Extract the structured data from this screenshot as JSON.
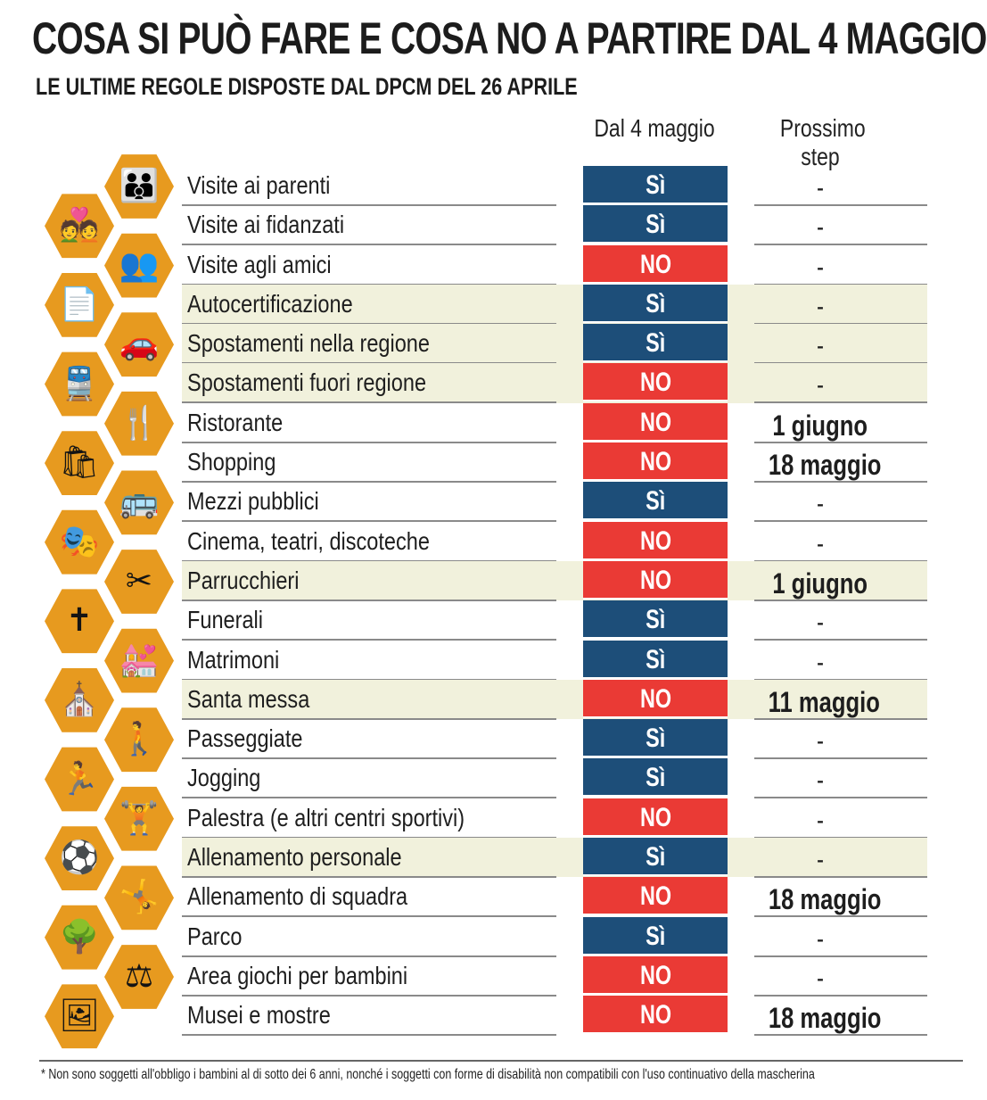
{
  "header": {
    "title": "COSA SI PUÒ FARE E COSA NO A PARTIRE DAL 4 MAGGIO",
    "subtitle": "LE ULTIME REGOLE DISPOSTE DAL DPCM DEL 26 APRILE"
  },
  "columns": {
    "now": "Dal 4 maggio",
    "next": "Prossimo step"
  },
  "colors": {
    "yes": "#1d4e79",
    "no": "#ea3a35",
    "hex": "#e79a1f",
    "highlight_row": "#f1f1dc"
  },
  "rows": [
    {
      "label": "Visite ai parenti",
      "status": "Sì",
      "next": "-",
      "highlight": false
    },
    {
      "label": "Visite ai fidanzati",
      "status": "Sì",
      "next": "-",
      "highlight": false
    },
    {
      "label": "Visite agli amici",
      "status": "NO",
      "next": "-",
      "highlight": false
    },
    {
      "label": "Autocertificazione",
      "status": "Sì",
      "next": "-",
      "highlight": true
    },
    {
      "label": "Spostamenti nella regione",
      "status": "Sì",
      "next": "-",
      "highlight": true
    },
    {
      "label": "Spostamenti fuori regione",
      "status": "NO",
      "next": "-",
      "highlight": true
    },
    {
      "label": "Ristorante",
      "status": "NO",
      "next": "1 giugno",
      "highlight": false
    },
    {
      "label": "Shopping",
      "status": "NO",
      "next": "18 maggio",
      "highlight": false
    },
    {
      "label": "Mezzi pubblici",
      "status": "Sì",
      "next": "-",
      "highlight": false
    },
    {
      "label": "Cinema, teatri, discoteche",
      "status": "NO",
      "next": "-",
      "highlight": false
    },
    {
      "label": "Parrucchieri",
      "status": "NO",
      "next": "1 giugno",
      "highlight": true
    },
    {
      "label": "Funerali",
      "status": "Sì",
      "next": "-",
      "highlight": false
    },
    {
      "label": "Matrimoni",
      "status": "Sì",
      "next": "-",
      "highlight": false
    },
    {
      "label": "Santa messa",
      "status": "NO",
      "next": "11 maggio",
      "highlight": true
    },
    {
      "label": "Passeggiate",
      "status": "Sì",
      "next": "-",
      "highlight": false
    },
    {
      "label": "Jogging",
      "status": "Sì",
      "next": "-",
      "highlight": false
    },
    {
      "label": "Palestra (e altri centri sportivi)",
      "status": "NO",
      "next": "-",
      "highlight": false
    },
    {
      "label": "Allenamento personale",
      "status": "Sì",
      "next": "-",
      "highlight": true
    },
    {
      "label": "Allenamento di squadra",
      "status": "NO",
      "next": "18 maggio",
      "highlight": false
    },
    {
      "label": "Parco",
      "status": "Sì",
      "next": "-",
      "highlight": false
    },
    {
      "label": "Area giochi per bambini",
      "status": "NO",
      "next": "-",
      "highlight": false
    },
    {
      "label": "Musei e mostre",
      "status": "NO",
      "next": "18 maggio",
      "highlight": false
    }
  ],
  "icons": [
    {
      "name": "family-icon",
      "glyph": "👪"
    },
    {
      "name": "couple-icon",
      "glyph": "💑"
    },
    {
      "name": "friends-icon",
      "glyph": "👥"
    },
    {
      "name": "document-icon",
      "glyph": "📄"
    },
    {
      "name": "car-icon",
      "glyph": "🚗"
    },
    {
      "name": "train-icon",
      "glyph": "🚆"
    },
    {
      "name": "cutlery-icon",
      "glyph": "🍴"
    },
    {
      "name": "shopping-bag-icon",
      "glyph": "🛍"
    },
    {
      "name": "bus-icon",
      "glyph": "🚌"
    },
    {
      "name": "theater-masks-icon",
      "glyph": "🎭"
    },
    {
      "name": "scissors-comb-icon",
      "glyph": "✂"
    },
    {
      "name": "grave-cross-icon",
      "glyph": "✝"
    },
    {
      "name": "wedding-couple-icon",
      "glyph": "💒"
    },
    {
      "name": "church-icon",
      "glyph": "⛪"
    },
    {
      "name": "hiker-icon",
      "glyph": "🚶"
    },
    {
      "name": "runner-icon",
      "glyph": "🏃"
    },
    {
      "name": "weightlifter-icon",
      "glyph": "🏋"
    },
    {
      "name": "soccer-player-icon",
      "glyph": "⚽"
    },
    {
      "name": "team-training-icon",
      "glyph": "🤸"
    },
    {
      "name": "park-trees-icon",
      "glyph": "🌳"
    },
    {
      "name": "seesaw-icon",
      "glyph": "⚖"
    },
    {
      "name": "museum-frame-icon",
      "glyph": "🖼"
    }
  ],
  "footnote": "* Non sono soggetti all'obbligo i bambini al di sotto dei 6 anni, nonché i soggetti con forme di disabilità non compatibili con l'uso continuativo della mascherina"
}
